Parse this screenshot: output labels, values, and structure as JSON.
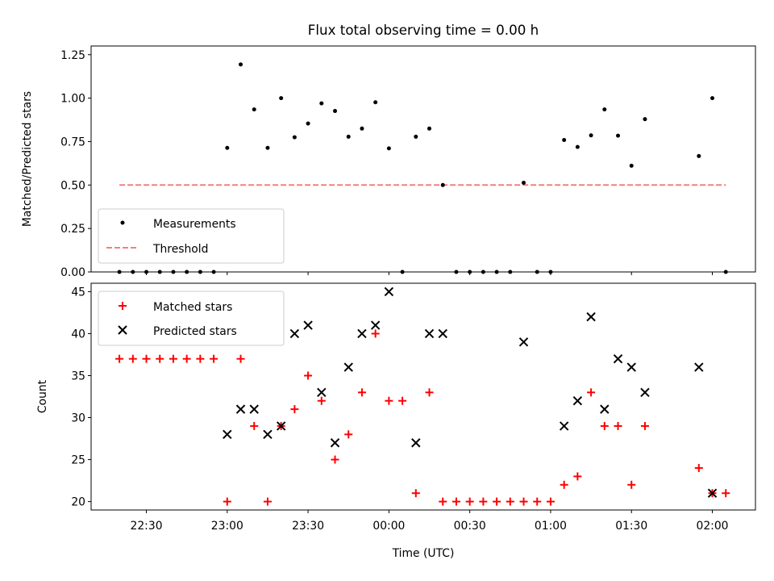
{
  "title": "Flux total observing time = 0.00 h",
  "chart_data": [
    {
      "type": "scatter",
      "ylabel": "Matched/Predicted stars",
      "ylim": [
        0,
        1.3
      ],
      "yticks": [
        0.0,
        0.25,
        0.5,
        0.75,
        1.0,
        1.25
      ],
      "yticklabels": [
        "0.00",
        "0.25",
        "0.50",
        "0.75",
        "1.00",
        "1.25"
      ],
      "legend": {
        "placement": "lower-left",
        "entries": [
          "Measurements",
          "Threshold"
        ]
      },
      "threshold": {
        "name": "Threshold",
        "value": 0.5,
        "x_start": "22:20",
        "x_end": "02:05",
        "color": "#f08080"
      },
      "series": [
        {
          "name": "Measurements",
          "color": "#000000",
          "points": [
            [
              "22:20",
              0.0
            ],
            [
              "22:25",
              0.0
            ],
            [
              "22:30",
              0.0
            ],
            [
              "22:35",
              0.0
            ],
            [
              "22:40",
              0.0
            ],
            [
              "22:45",
              0.0
            ],
            [
              "22:50",
              0.0
            ],
            [
              "22:55",
              0.0
            ],
            [
              "23:00",
              0.714
            ],
            [
              "23:05",
              1.194
            ],
            [
              "23:10",
              0.935
            ],
            [
              "23:15",
              0.714
            ],
            [
              "23:20",
              1.0
            ],
            [
              "23:25",
              0.775
            ],
            [
              "23:30",
              0.854
            ],
            [
              "23:35",
              0.97
            ],
            [
              "23:40",
              0.926
            ],
            [
              "23:45",
              0.778
            ],
            [
              "23:50",
              0.825
            ],
            [
              "23:55",
              0.976
            ],
            [
              "00:00",
              0.711
            ],
            [
              "00:05",
              0.0
            ],
            [
              "00:10",
              0.778
            ],
            [
              "00:15",
              0.825
            ],
            [
              "00:20",
              0.5
            ],
            [
              "00:25",
              0.0
            ],
            [
              "00:30",
              0.0
            ],
            [
              "00:35",
              0.0
            ],
            [
              "00:40",
              0.0
            ],
            [
              "00:45",
              0.0
            ],
            [
              "00:50",
              0.513
            ],
            [
              "00:55",
              0.0
            ],
            [
              "01:00",
              0.0
            ],
            [
              "01:05",
              0.759
            ],
            [
              "01:10",
              0.719
            ],
            [
              "01:15",
              0.786
            ],
            [
              "01:20",
              0.935
            ],
            [
              "01:25",
              0.784
            ],
            [
              "01:30",
              0.611
            ],
            [
              "01:35",
              0.879
            ],
            [
              "01:55",
              0.667
            ],
            [
              "02:00",
              1.0
            ],
            [
              "02:05",
              0.0
            ]
          ]
        }
      ]
    },
    {
      "type": "scatter",
      "xlabel": "Time (UTC)",
      "ylabel": "Count",
      "ylim": [
        19,
        46
      ],
      "yticks": [
        20,
        25,
        30,
        35,
        40,
        45
      ],
      "xticks": [
        "22:30",
        "23:00",
        "23:30",
        "00:00",
        "00:30",
        "01:00",
        "01:30",
        "02:00"
      ],
      "legend": {
        "placement": "upper-left",
        "entries": [
          "Matched stars",
          "Predicted stars"
        ]
      },
      "series": [
        {
          "name": "Matched stars",
          "marker": "plus",
          "color": "#ff0000",
          "points": [
            [
              "22:20",
              37
            ],
            [
              "22:25",
              37
            ],
            [
              "22:30",
              37
            ],
            [
              "22:35",
              37
            ],
            [
              "22:40",
              37
            ],
            [
              "22:45",
              37
            ],
            [
              "22:50",
              37
            ],
            [
              "22:55",
              37
            ],
            [
              "23:00",
              20
            ],
            [
              "23:05",
              37
            ],
            [
              "23:10",
              29
            ],
            [
              "23:15",
              20
            ],
            [
              "23:20",
              29
            ],
            [
              "23:25",
              31
            ],
            [
              "23:30",
              35
            ],
            [
              "23:35",
              32
            ],
            [
              "23:40",
              25
            ],
            [
              "23:45",
              28
            ],
            [
              "23:50",
              33
            ],
            [
              "23:55",
              40
            ],
            [
              "00:00",
              32
            ],
            [
              "00:05",
              32
            ],
            [
              "00:10",
              21
            ],
            [
              "00:15",
              33
            ],
            [
              "00:20",
              20
            ],
            [
              "00:25",
              20
            ],
            [
              "00:30",
              20
            ],
            [
              "00:35",
              20
            ],
            [
              "00:40",
              20
            ],
            [
              "00:45",
              20
            ],
            [
              "00:50",
              20
            ],
            [
              "00:55",
              20
            ],
            [
              "01:00",
              20
            ],
            [
              "01:05",
              22
            ],
            [
              "01:10",
              23
            ],
            [
              "01:15",
              33
            ],
            [
              "01:20",
              29
            ],
            [
              "01:25",
              29
            ],
            [
              "01:30",
              22
            ],
            [
              "01:35",
              29
            ],
            [
              "01:55",
              24
            ],
            [
              "02:00",
              21
            ],
            [
              "02:05",
              21
            ]
          ]
        },
        {
          "name": "Predicted stars",
          "marker": "x",
          "color": "#000000",
          "points": [
            [
              "23:00",
              28
            ],
            [
              "23:05",
              31
            ],
            [
              "23:10",
              31
            ],
            [
              "23:15",
              28
            ],
            [
              "23:20",
              29
            ],
            [
              "23:25",
              40
            ],
            [
              "23:30",
              41
            ],
            [
              "23:35",
              33
            ],
            [
              "23:40",
              27
            ],
            [
              "23:45",
              36
            ],
            [
              "23:50",
              40
            ],
            [
              "23:55",
              41
            ],
            [
              "00:00",
              45
            ],
            [
              "00:10",
              27
            ],
            [
              "00:15",
              40
            ],
            [
              "00:20",
              40
            ],
            [
              "00:50",
              39
            ],
            [
              "01:05",
              29
            ],
            [
              "01:10",
              32
            ],
            [
              "01:15",
              42
            ],
            [
              "01:20",
              31
            ],
            [
              "01:25",
              37
            ],
            [
              "01:30",
              36
            ],
            [
              "01:35",
              33
            ],
            [
              "01:55",
              36
            ],
            [
              "02:00",
              21
            ]
          ]
        }
      ]
    }
  ]
}
